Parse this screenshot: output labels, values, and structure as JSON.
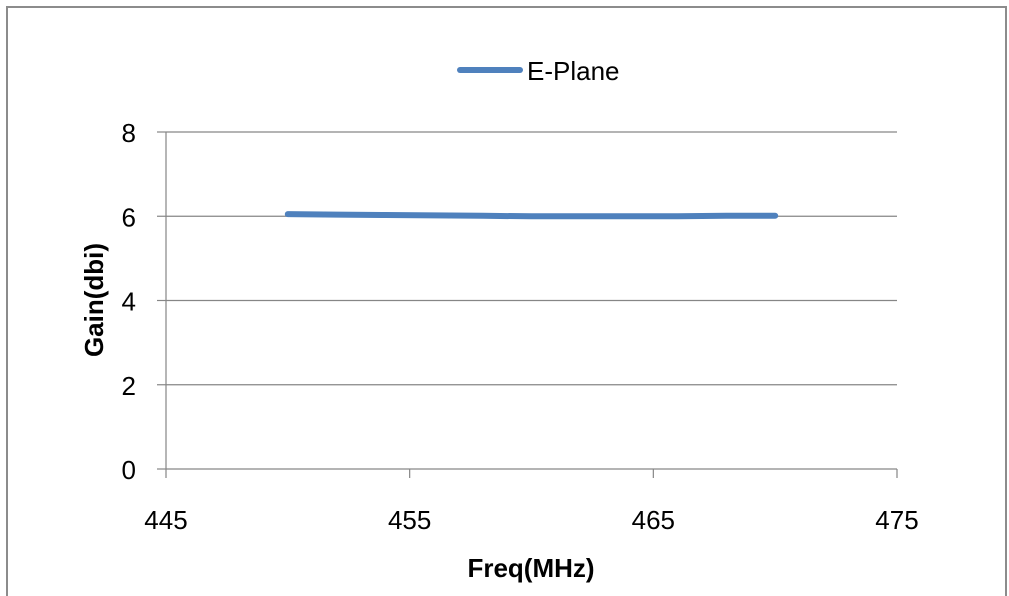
{
  "chart_data": {
    "type": "line",
    "title": "",
    "xlabel": "Freq(MHz)",
    "ylabel": "Gain(dbi)",
    "xlim": [
      445,
      475
    ],
    "ylim": [
      0,
      8
    ],
    "xticks": [
      445,
      455,
      465,
      475
    ],
    "yticks": [
      0,
      2,
      4,
      6,
      8
    ],
    "grid": "horizontal",
    "legend_position": "top",
    "series": [
      {
        "name": "E-Plane",
        "color": "#4f81bd",
        "x": [
          450,
          452,
          454,
          456,
          458,
          460,
          462,
          464,
          466,
          468,
          470
        ],
        "y": [
          6.05,
          6.04,
          6.03,
          6.02,
          6.01,
          6.0,
          6.0,
          6.0,
          6.0,
          6.01,
          6.01
        ]
      }
    ]
  }
}
